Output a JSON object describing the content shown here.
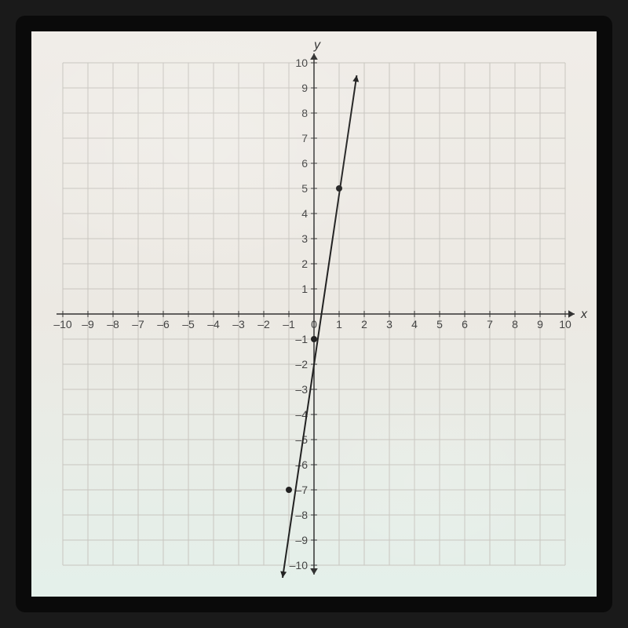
{
  "chart": {
    "type": "line",
    "background_color": "#ece9e3",
    "grid_color": "#c8c5bf",
    "axis_color": "#333333",
    "line_color": "#222222",
    "point_color": "#222222",
    "xlim": [
      -10,
      10
    ],
    "ylim": [
      -10,
      10
    ],
    "xtick_step": 1,
    "ytick_step": 1,
    "xlabel": "x",
    "ylabel": "y",
    "label_fontsize": 16,
    "tick_fontsize": 14,
    "line_width": 2,
    "point_radius": 4,
    "arrow_size": 8,
    "line_points": [
      {
        "x": -1.25,
        "y": -10.5
      },
      {
        "x": 1.7,
        "y": 9.5
      }
    ],
    "marked_points": [
      {
        "x": 0,
        "y": -1
      },
      {
        "x": 1,
        "y": 5
      },
      {
        "x": -1,
        "y": -7
      }
    ],
    "x_ticks": [
      -10,
      -9,
      -8,
      -7,
      -6,
      -5,
      -4,
      -3,
      -2,
      -1,
      0,
      1,
      2,
      3,
      4,
      5,
      6,
      7,
      8,
      9,
      10
    ],
    "y_ticks": [
      -10,
      -9,
      -8,
      -7,
      -6,
      -5,
      -4,
      -3,
      -2,
      -1,
      1,
      2,
      3,
      4,
      5,
      6,
      7,
      8,
      9,
      10
    ],
    "x_tick_labels": [
      "–10",
      "–9",
      "–8",
      "–7",
      "–6",
      "–5",
      "–4",
      "–3",
      "–2",
      "–1",
      "0",
      "1",
      "2",
      "3",
      "4",
      "5",
      "6",
      "7",
      "8",
      "9",
      "10"
    ],
    "y_tick_labels": [
      "–10",
      "–9",
      "–8",
      "–7",
      "–6",
      "–5",
      "–4",
      "–3",
      "–2",
      "–1",
      "1",
      "2",
      "3",
      "4",
      "5",
      "6",
      "7",
      "8",
      "9",
      "10"
    ]
  }
}
